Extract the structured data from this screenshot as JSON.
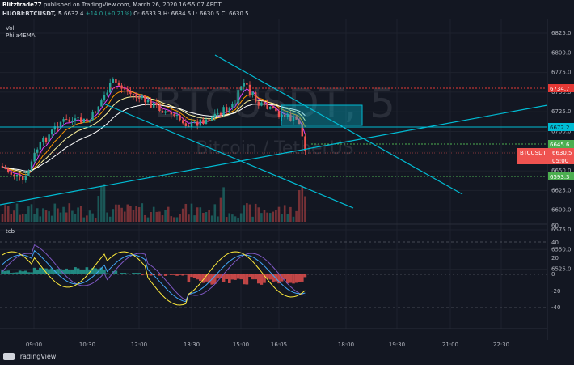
{
  "header": {
    "author": "Blitztrade77",
    "published_text": "published on TradingView.com, March 26, 2020 16:55:07 AEDT",
    "symbol": "HUOBI:BTCUSDT, 5",
    "price": "6632.4",
    "change": "+14.0 (+0.21%)",
    "ohlc": "O: 6633.3  H: 6634.5  L: 6630.5  C: 6630.5"
  },
  "watermark": {
    "symbol": "BTCUSDT, 5",
    "name": "Bitcoin / TetherUS"
  },
  "indicators": {
    "vol": "Vol",
    "ema": "Phila4EMA",
    "lower": "tcb"
  },
  "price_axis": [
    "6825.0",
    "6800.0",
    "6775.0",
    "6750.0",
    "6725.0",
    "6700.0",
    "6675.0",
    "6650.0",
    "6625.0",
    "6600.0",
    "6575.0",
    "6550.0",
    "6525.0"
  ],
  "price_labels": {
    "red_level": "6734.7",
    "cyan_level": "6672.2",
    "green_level_1": "6645.6",
    "green_level_2": "6593.3",
    "current_symbol": "BTCUSDT",
    "current_price": "6630.5",
    "countdown": "05:00"
  },
  "osc_axis": [
    "60",
    "40",
    "20",
    "0",
    "-20",
    "-40"
  ],
  "time_axis": [
    "09:00",
    "10:30",
    "12:00",
    "13:30",
    "15:00",
    "16:05",
    "18:00",
    "19:30",
    "21:00",
    "22:30"
  ],
  "footer": {
    "brand": "TradingView"
  },
  "colors": {
    "background": "#131722",
    "up": "#26a69a",
    "down": "#ef5350",
    "cyan": "#00bcd4",
    "red_line": "#e53935",
    "green_line": "#4caf50"
  }
}
